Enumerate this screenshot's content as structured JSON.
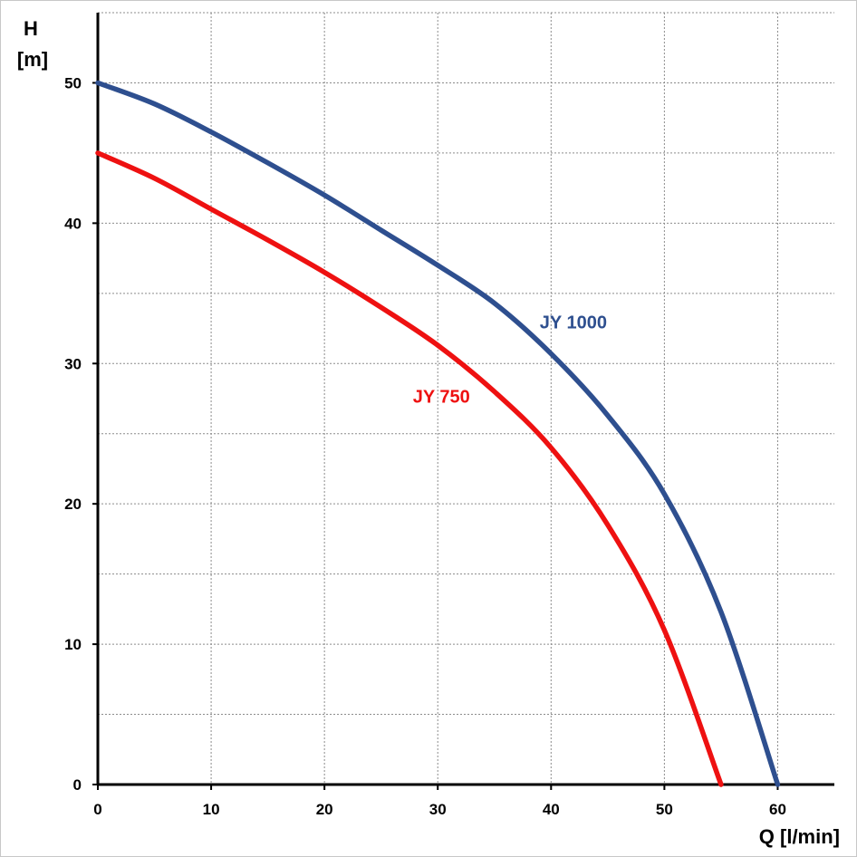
{
  "chart_data": {
    "type": "line",
    "xlabel": "Q [l/min]",
    "ylabel_top": "H",
    "ylabel_bottom": "[m]",
    "xlim": [
      0,
      65
    ],
    "ylim": [
      0,
      55
    ],
    "x_ticks": [
      0,
      10,
      20,
      30,
      40,
      50,
      60
    ],
    "y_ticks": [
      0,
      10,
      20,
      30,
      40,
      50
    ],
    "x_gridlines": [
      10,
      20,
      30,
      40,
      50,
      60
    ],
    "y_gridlines": [
      5,
      10,
      15,
      20,
      25,
      30,
      35,
      40,
      45,
      50,
      55
    ],
    "grid": true,
    "series": [
      {
        "name": "JY 1000",
        "color": "#2e4f8f",
        "x": [
          0,
          5,
          10,
          15,
          20,
          25,
          30,
          35,
          40,
          45,
          50,
          55,
          60
        ],
        "y": [
          50,
          48.5,
          46.5,
          44.3,
          42,
          39.5,
          37,
          34.3,
          30.7,
          26.3,
          20.7,
          12.3,
          0
        ]
      },
      {
        "name": "JY 750",
        "color": "#ee1111",
        "x": [
          0,
          5,
          10,
          15,
          20,
          25,
          30,
          35,
          40,
          45,
          50,
          55
        ],
        "y": [
          45,
          43.2,
          41,
          38.8,
          36.5,
          34,
          31.3,
          28,
          24,
          18.5,
          11,
          0
        ]
      }
    ],
    "labels": [
      {
        "text": "JY 1000",
        "color": "#2e4f8f",
        "at_x": 39,
        "at_y": 32.5
      },
      {
        "text": "JY 750",
        "color": "#ee1111",
        "at_x": 27.8,
        "at_y": 27.2
      }
    ]
  }
}
